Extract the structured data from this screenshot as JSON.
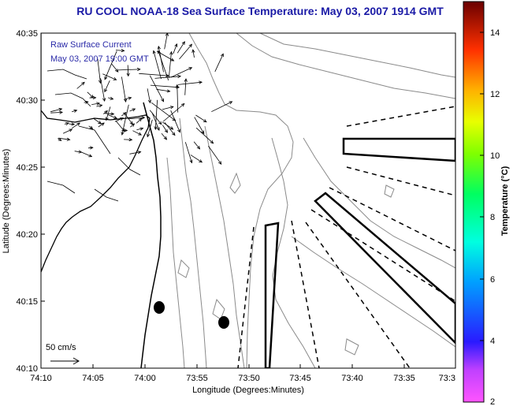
{
  "title": "RU COOL  NOAA-18  Sea Surface Temperature:  May 03, 2007 1914 GMT",
  "map": {
    "legend_line1": "Raw Surface Current",
    "legend_line2": "May 03, 2007 19:00 GMT",
    "scale_label": "50 cm/s",
    "x_axis_title": "Longitude (Degrees:Minutes)",
    "y_axis_title": "Latitude (Degrees:Minutes)",
    "x_ticks": [
      "74:10",
      "74:05",
      "74:00",
      "73:55",
      "73:50",
      "73:45",
      "73:40",
      "73:35",
      "73:3"
    ],
    "y_ticks": [
      "40:35",
      "40:30",
      "40:25",
      "40:20",
      "40:15",
      "40:10"
    ],
    "colors": {
      "title": "#1a1aa6",
      "legend_text": "#2a2aa8",
      "contour": "#8a8a8a",
      "vector": "#000000",
      "coast": "#000000"
    }
  },
  "colorbar": {
    "title": "Temperature (°C)",
    "tick_labels": [
      "14",
      "12",
      "10",
      "8",
      "6",
      "4",
      "2"
    ],
    "range": [
      2,
      15
    ]
  }
}
